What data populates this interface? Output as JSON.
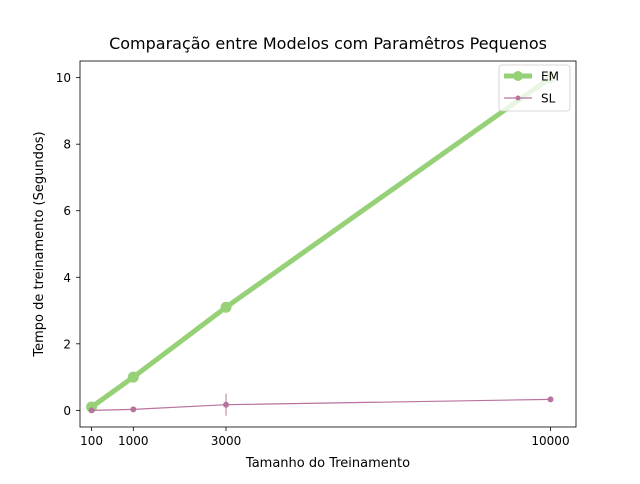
{
  "chart_data": {
    "type": "line",
    "title": "Comparação entre Modelos com Paramêtros Pequenos",
    "xlabel": "Tamanho do Treinamento",
    "ylabel": "Tempo de treinamento (Segundos)",
    "xlim": [
      -150,
      10550
    ],
    "ylim": [
      -0.5,
      10.5
    ],
    "xticks": [
      100,
      1000,
      3000,
      10000
    ],
    "yticks": [
      0,
      2,
      4,
      6,
      8,
      10
    ],
    "grid": false,
    "legend_position": "top-right",
    "series": [
      {
        "name": "EM",
        "color": "#96d177",
        "x": [
          100,
          1000,
          3000,
          10000
        ],
        "y": [
          0.1,
          1.0,
          3.1,
          10.0
        ],
        "error": [
          0,
          0,
          0,
          0
        ]
      },
      {
        "name": "SL",
        "color": "#b8739e",
        "x": [
          100,
          1000,
          3000,
          10000
        ],
        "y": [
          0.0,
          0.03,
          0.17,
          0.33
        ],
        "error": [
          0,
          0,
          0.33,
          0
        ]
      }
    ]
  }
}
